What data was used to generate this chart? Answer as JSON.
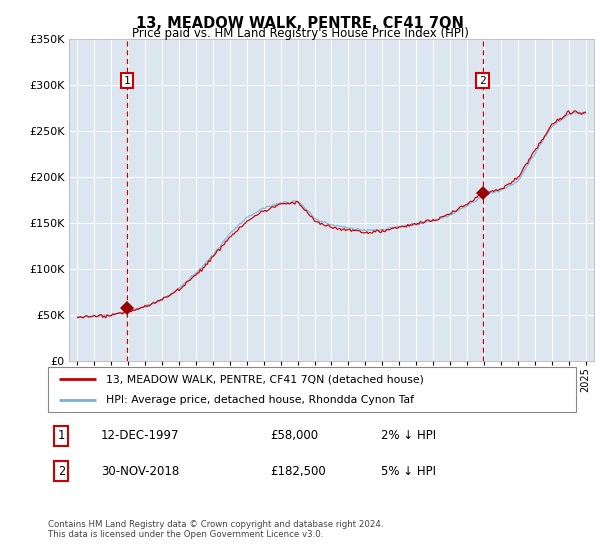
{
  "title": "13, MEADOW WALK, PENTRE, CF41 7QN",
  "subtitle": "Price paid vs. HM Land Registry's House Price Index (HPI)",
  "legend_line1": "13, MEADOW WALK, PENTRE, CF41 7QN (detached house)",
  "legend_line2": "HPI: Average price, detached house, Rhondda Cynon Taf",
  "footnote": "Contains HM Land Registry data © Crown copyright and database right 2024.\nThis data is licensed under the Open Government Licence v3.0.",
  "sale1_date": "12-DEC-1997",
  "sale1_price": "£58,000",
  "sale1_hpi": "2% ↓ HPI",
  "sale2_date": "30-NOV-2018",
  "sale2_price": "£182,500",
  "sale2_hpi": "5% ↓ HPI",
  "sale1_year": 1997.92,
  "sale1_value": 58000,
  "sale2_year": 2018.92,
  "sale2_value": 182500,
  "ylim": [
    0,
    350000
  ],
  "xlim_start": 1994.5,
  "xlim_end": 2025.5,
  "price_line_color": "#cc0000",
  "hpi_line_color": "#7bafd4",
  "vline_color": "#cc0000",
  "marker_color": "#990000",
  "plot_bg": "#dce6f1",
  "box_color": "#cc0000",
  "yticks": [
    0,
    50000,
    100000,
    150000,
    200000,
    250000,
    300000,
    350000
  ],
  "xticks": [
    1995,
    1996,
    1997,
    1998,
    1999,
    2000,
    2001,
    2002,
    2003,
    2004,
    2005,
    2006,
    2007,
    2008,
    2009,
    2010,
    2011,
    2012,
    2013,
    2014,
    2015,
    2016,
    2017,
    2018,
    2019,
    2020,
    2021,
    2022,
    2023,
    2024,
    2025
  ],
  "hpi_control_years": [
    1995,
    1996,
    1997,
    1998,
    1999,
    2000,
    2001,
    2002,
    2003,
    2004,
    2005,
    2006,
    2007,
    2008,
    2009,
    2010,
    2011,
    2012,
    2013,
    2014,
    2015,
    2016,
    2017,
    2018,
    2019,
    2020,
    2021,
    2022,
    2023,
    2024,
    2025
  ],
  "hpi_control_values": [
    48000,
    49000,
    51000,
    55000,
    60000,
    68000,
    80000,
    96000,
    115000,
    138000,
    155000,
    165000,
    172000,
    175000,
    155000,
    148000,
    145000,
    142000,
    143000,
    146000,
    149000,
    152000,
    158000,
    168000,
    180000,
    185000,
    195000,
    225000,
    255000,
    268000,
    270000
  ]
}
